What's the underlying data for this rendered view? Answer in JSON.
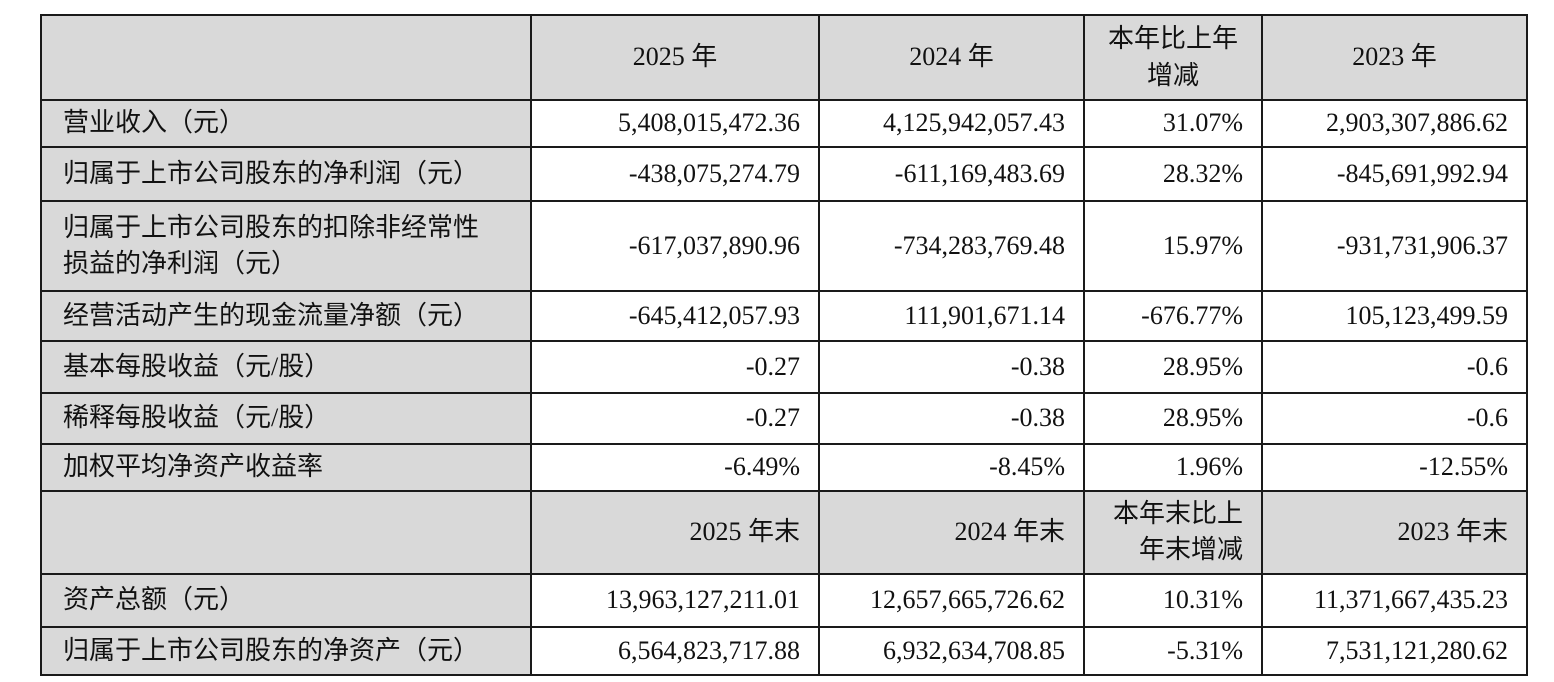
{
  "colors": {
    "header_bg": "#d9d9d9",
    "label_bg": "#d9d9d9",
    "cell_bg": "#ffffff",
    "border": "#1a1a1a",
    "text": "#111111"
  },
  "table": {
    "section1": {
      "headers": [
        "",
        "2025 年",
        "2024 年",
        "本年比上年\n增减",
        "2023 年"
      ],
      "rows": [
        {
          "label": "营业收入（元）",
          "values": [
            "5,408,015,472.36",
            "4,125,942,057.43",
            "31.07%",
            "2,903,307,886.62"
          ]
        },
        {
          "label": "归属于上市公司股东的净利润（元）",
          "values": [
            "-438,075,274.79",
            "-611,169,483.69",
            "28.32%",
            "-845,691,992.94"
          ]
        },
        {
          "label": "归属于上市公司股东的扣除非经常性\n损益的净利润（元）",
          "values": [
            "-617,037,890.96",
            "-734,283,769.48",
            "15.97%",
            "-931,731,906.37"
          ]
        },
        {
          "label": "经营活动产生的现金流量净额（元）",
          "values": [
            "-645,412,057.93",
            "111,901,671.14",
            "-676.77%",
            "105,123,499.59"
          ]
        },
        {
          "label": "基本每股收益（元/股）",
          "values": [
            "-0.27",
            "-0.38",
            "28.95%",
            "-0.6"
          ]
        },
        {
          "label": "稀释每股收益（元/股）",
          "values": [
            "-0.27",
            "-0.38",
            "28.95%",
            "-0.6"
          ]
        },
        {
          "label": "加权平均净资产收益率",
          "values": [
            "-6.49%",
            "-8.45%",
            "1.96%",
            "-12.55%"
          ]
        }
      ]
    },
    "section2": {
      "headers": [
        "",
        "2025 年末",
        "2024 年末",
        "本年末比上\n年末增减",
        "2023 年末"
      ],
      "rows": [
        {
          "label": "资产总额（元）",
          "values": [
            "13,963,127,211.01",
            "12,657,665,726.62",
            "10.31%",
            "11,371,667,435.23"
          ]
        },
        {
          "label": "归属于上市公司股东的净资产（元）",
          "values": [
            "6,564,823,717.88",
            "6,932,634,708.85",
            "-5.31%",
            "7,531,121,280.62"
          ]
        }
      ]
    }
  }
}
